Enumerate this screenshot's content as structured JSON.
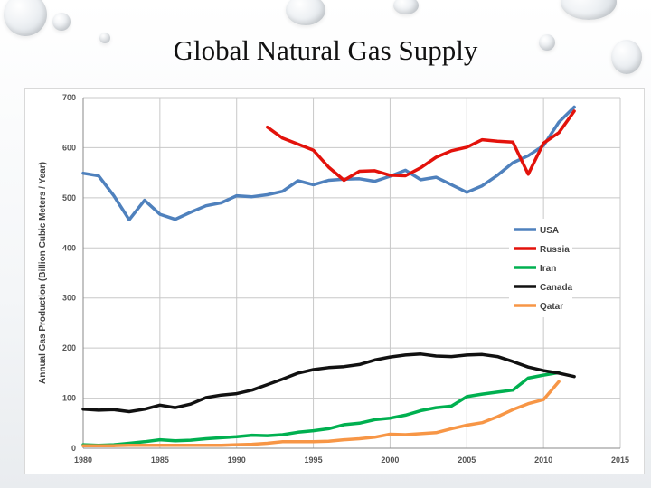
{
  "slide": {
    "title": "Global Natural Gas Supply"
  },
  "chart_data": {
    "type": "line",
    "title": "Global Natural Gas Supply",
    "xlabel": "",
    "ylabel": "Annual Gas Production (Billion Cubic Meters / Year)",
    "xlim": [
      1980,
      2015
    ],
    "ylim": [
      0,
      700
    ],
    "x_ticks": [
      1980,
      1985,
      1990,
      1995,
      2000,
      2005,
      2010,
      2015
    ],
    "y_ticks": [
      0,
      100,
      200,
      300,
      400,
      500,
      600,
      700
    ],
    "grid": true,
    "legend_position": "right",
    "series": [
      {
        "name": "USA",
        "color": "#4f81bd",
        "x": [
          1980,
          1981,
          1982,
          1983,
          1984,
          1985,
          1986,
          1987,
          1988,
          1989,
          1990,
          1991,
          1992,
          1993,
          1994,
          1995,
          1996,
          1997,
          1998,
          1999,
          2000,
          2001,
          2002,
          2003,
          2004,
          2005,
          2006,
          2007,
          2008,
          2009,
          2010,
          2011,
          2012
        ],
        "values": [
          549,
          544,
          504,
          456,
          495,
          467,
          457,
          471,
          484,
          490,
          504,
          502,
          506,
          513,
          534,
          526,
          535,
          537,
          538,
          533,
          543,
          555,
          536,
          541,
          526,
          511,
          524,
          545,
          570,
          584,
          604,
          651,
          681
        ]
      },
      {
        "name": "Russia",
        "color": "#e3120b",
        "x": [
          1992,
          1993,
          1994,
          1995,
          1996,
          1997,
          1998,
          1999,
          2000,
          2001,
          2002,
          2003,
          2004,
          2005,
          2006,
          2007,
          2008,
          2009,
          2010,
          2011,
          2012
        ],
        "values": [
          641,
          619,
          607,
          595,
          561,
          535,
          553,
          554,
          545,
          544,
          560,
          581,
          594,
          601,
          616,
          613,
          611,
          547,
          609,
          630,
          673
        ]
      },
      {
        "name": "Iran",
        "color": "#00b050",
        "x": [
          1980,
          1981,
          1982,
          1983,
          1984,
          1985,
          1986,
          1987,
          1988,
          1989,
          1990,
          1991,
          1992,
          1993,
          1994,
          1995,
          1996,
          1997,
          1998,
          1999,
          2000,
          2001,
          2002,
          2003,
          2004,
          2005,
          2006,
          2007,
          2008,
          2009,
          2010,
          2011
        ],
        "values": [
          7,
          6,
          7,
          10,
          13,
          17,
          15,
          16,
          19,
          21,
          23,
          26,
          25,
          27,
          32,
          35,
          39,
          47,
          50,
          57,
          60,
          66,
          75,
          81,
          84,
          103,
          108,
          112,
          116,
          140,
          146,
          151
        ]
      },
      {
        "name": "Canada",
        "color": "#111111",
        "x": [
          1980,
          1981,
          1982,
          1983,
          1984,
          1985,
          1986,
          1987,
          1988,
          1989,
          1990,
          1991,
          1992,
          1993,
          1994,
          1995,
          1996,
          1997,
          1998,
          1999,
          2000,
          2001,
          2002,
          2003,
          2004,
          2005,
          2006,
          2007,
          2008,
          2009,
          2010,
          2011,
          2012
        ],
        "values": [
          78,
          76,
          77,
          73,
          78,
          86,
          81,
          88,
          101,
          106,
          109,
          116,
          127,
          138,
          150,
          157,
          161,
          163,
          167,
          176,
          182,
          186,
          188,
          184,
          183,
          186,
          187,
          183,
          173,
          162,
          155,
          150,
          143
        ]
      },
      {
        "name": "Qatar",
        "color": "#f79646",
        "x": [
          1980,
          1981,
          1982,
          1983,
          1984,
          1985,
          1986,
          1987,
          1988,
          1989,
          1990,
          1991,
          1992,
          1993,
          1994,
          1995,
          1996,
          1997,
          1998,
          1999,
          2000,
          2001,
          2002,
          2003,
          2004,
          2005,
          2006,
          2007,
          2008,
          2009,
          2010,
          2011
        ],
        "values": [
          5,
          5,
          5,
          6,
          6,
          6,
          6,
          6,
          6,
          6,
          7,
          8,
          10,
          13,
          13,
          13,
          14,
          17,
          19,
          22,
          28,
          27,
          29,
          31,
          39,
          46,
          51,
          63,
          77,
          89,
          97,
          133
        ]
      }
    ]
  }
}
